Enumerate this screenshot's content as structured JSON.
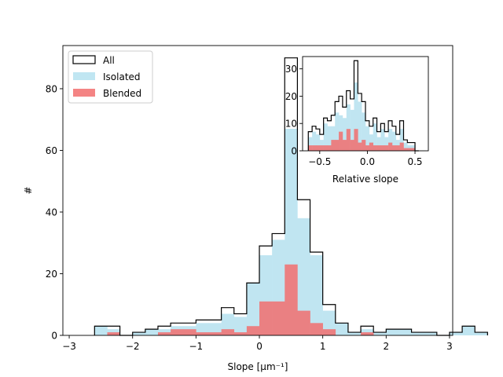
{
  "chart_data": [
    {
      "type": "bar",
      "title": "",
      "xlabel": "Slope [μm⁻¹]",
      "ylabel": "#",
      "xlim": [
        -3.1,
        3.05
      ],
      "ylim": [
        0,
        94
      ],
      "xticks": [
        "−3",
        "−2",
        "−1",
        "0",
        "1",
        "2",
        "3"
      ],
      "xtick_values": [
        -3,
        -2,
        -1,
        0,
        1,
        2,
        3
      ],
      "yticks": [
        "0",
        "20",
        "40",
        "60",
        "80"
      ],
      "ytick_values": [
        0,
        20,
        40,
        60,
        80
      ],
      "bin_start": -2.6,
      "bin_width": 0.2,
      "legend_position": "top-left",
      "series": [
        {
          "name": "All",
          "style": "step",
          "color": "#000000",
          "values": [
            3,
            3,
            0,
            1,
            2,
            3,
            4,
            4,
            5,
            5,
            9,
            7,
            17,
            29,
            33,
            90,
            44,
            27,
            10,
            4,
            1,
            3,
            1,
            2,
            2,
            1,
            1,
            0,
            1,
            3,
            1
          ]
        },
        {
          "name": "Isolated",
          "style": "filled",
          "color": "#a8dced",
          "values": [
            3,
            2,
            0,
            1,
            2,
            2,
            3,
            3,
            4,
            4,
            7,
            6,
            17,
            26,
            31,
            67,
            38,
            26,
            8,
            4,
            1,
            2,
            1,
            2,
            2,
            1,
            1,
            0,
            1,
            3,
            1
          ]
        },
        {
          "name": "Blended",
          "style": "filled",
          "color": "#f26f6f",
          "values": [
            0,
            1,
            0,
            0,
            0,
            1,
            2,
            2,
            1,
            1,
            2,
            1,
            3,
            11,
            11,
            23,
            8,
            4,
            2,
            0,
            0,
            1,
            0,
            0,
            0,
            0,
            0,
            0,
            0,
            0,
            0
          ]
        }
      ]
    },
    {
      "type": "bar",
      "title": "",
      "xlabel": "Relative slope",
      "ylabel": "",
      "xlim": [
        -0.68,
        0.64
      ],
      "ylim": [
        0,
        34.5
      ],
      "xticks": [
        "−0.5",
        "0.0",
        "0.5"
      ],
      "xtick_values": [
        -0.5,
        0,
        0.5
      ],
      "yticks": [
        "0",
        "10",
        "20",
        "30"
      ],
      "ytick_values": [
        0,
        10,
        20,
        30
      ],
      "bin_start": -0.62,
      "bin_width": 0.04,
      "series": [
        {
          "name": "All",
          "style": "step",
          "color": "#000000",
          "values": [
            7,
            9,
            8,
            6,
            12,
            11,
            13,
            18,
            20,
            16,
            22,
            19,
            33,
            21,
            18,
            11,
            9,
            12,
            7,
            10,
            7,
            11,
            9,
            6,
            11,
            4,
            3,
            3,
            0
          ]
        },
        {
          "name": "Isolated",
          "style": "filled",
          "color": "#a8dced",
          "values": [
            5,
            7,
            6,
            4,
            10,
            9,
            9,
            14,
            13,
            12,
            17,
            15,
            25,
            18,
            14,
            9,
            6,
            10,
            5,
            8,
            5,
            8,
            7,
            4,
            8,
            3,
            2,
            2,
            0
          ]
        },
        {
          "name": "Blended",
          "style": "filled",
          "color": "#f26f6f",
          "values": [
            2,
            2,
            2,
            2,
            2,
            2,
            4,
            4,
            7,
            4,
            8,
            4,
            8,
            3,
            4,
            2,
            3,
            2,
            2,
            2,
            2,
            3,
            2,
            2,
            3,
            1,
            1,
            1,
            0
          ]
        }
      ]
    }
  ]
}
